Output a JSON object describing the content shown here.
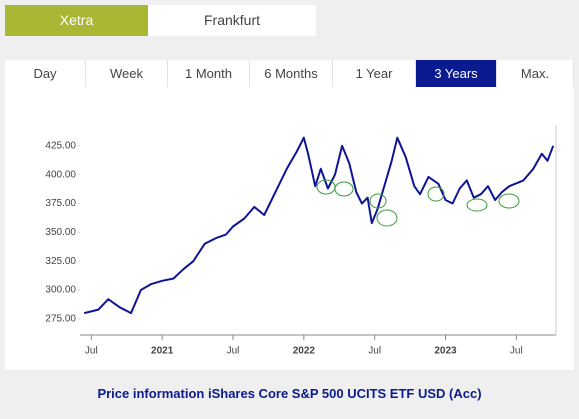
{
  "exchanges": [
    {
      "label": "Xetra",
      "active": true
    },
    {
      "label": "Frankfurt",
      "active": false
    }
  ],
  "periods": [
    {
      "label": "Day",
      "active": false
    },
    {
      "label": "Week",
      "active": false
    },
    {
      "label": "1 Month",
      "active": false
    },
    {
      "label": "6 Months",
      "active": false
    },
    {
      "label": "1 Year",
      "active": false
    },
    {
      "label": "3 Years",
      "active": true
    },
    {
      "label": "Max.",
      "active": false
    }
  ],
  "chart_data": {
    "type": "line",
    "title": "Price information iShares Core S&P 500 UCITS ETF USD (Acc)",
    "x": [
      2020.45,
      2020.55,
      2020.62,
      2020.7,
      2020.78,
      2020.85,
      2020.92,
      2021.0,
      2021.08,
      2021.15,
      2021.22,
      2021.3,
      2021.38,
      2021.45,
      2021.5,
      2021.58,
      2021.65,
      2021.72,
      2021.8,
      2021.88,
      2021.95,
      2022.0,
      2022.03,
      2022.08,
      2022.12,
      2022.17,
      2022.22,
      2022.27,
      2022.32,
      2022.37,
      2022.41,
      2022.45,
      2022.48,
      2022.52,
      2022.58,
      2022.62,
      2022.66,
      2022.72,
      2022.78,
      2022.82,
      2022.88,
      2022.95,
      2023.0,
      2023.05,
      2023.1,
      2023.15,
      2023.2,
      2023.25,
      2023.3,
      2023.35,
      2023.4,
      2023.45,
      2023.55,
      2023.62,
      2023.68,
      2023.72,
      2023.76
    ],
    "series": [
      {
        "name": "Price",
        "color": "#0d1596",
        "values": [
          280,
          283,
          292,
          285,
          280,
          300,
          305,
          308,
          310,
          318,
          325,
          340,
          345,
          348,
          355,
          362,
          372,
          365,
          385,
          405,
          420,
          432,
          418,
          390,
          405,
          388,
          400,
          425,
          410,
          385,
          375,
          380,
          358,
          370,
          395,
          412,
          432,
          415,
          390,
          383,
          398,
          392,
          378,
          375,
          388,
          395,
          380,
          383,
          390,
          378,
          385,
          390,
          395,
          405,
          418,
          412,
          425
        ]
      }
    ],
    "xlim": [
      2020.42,
      2023.78
    ],
    "xticks": [
      {
        "value": 2020.5,
        "label": "Jul"
      },
      2021,
      {
        "value": 2021.5,
        "label": "Jul"
      },
      2022,
      {
        "value": 2022.5,
        "label": "Jul"
      },
      2023,
      {
        "value": 2023.5,
        "label": "Jul"
      }
    ],
    "ylim": [
      261,
      443
    ],
    "yticks": [
      {
        "value": 275,
        "label": "275.00"
      },
      {
        "value": 300,
        "label": "300.00"
      },
      {
        "value": 325,
        "label": "325.00"
      },
      {
        "value": 350,
        "label": "350.00"
      },
      {
        "value": 375,
        "label": "375.00"
      },
      {
        "value": 400,
        "label": "400.00"
      },
      {
        "value": 425,
        "label": "425.00"
      }
    ],
    "grid": false
  }
}
